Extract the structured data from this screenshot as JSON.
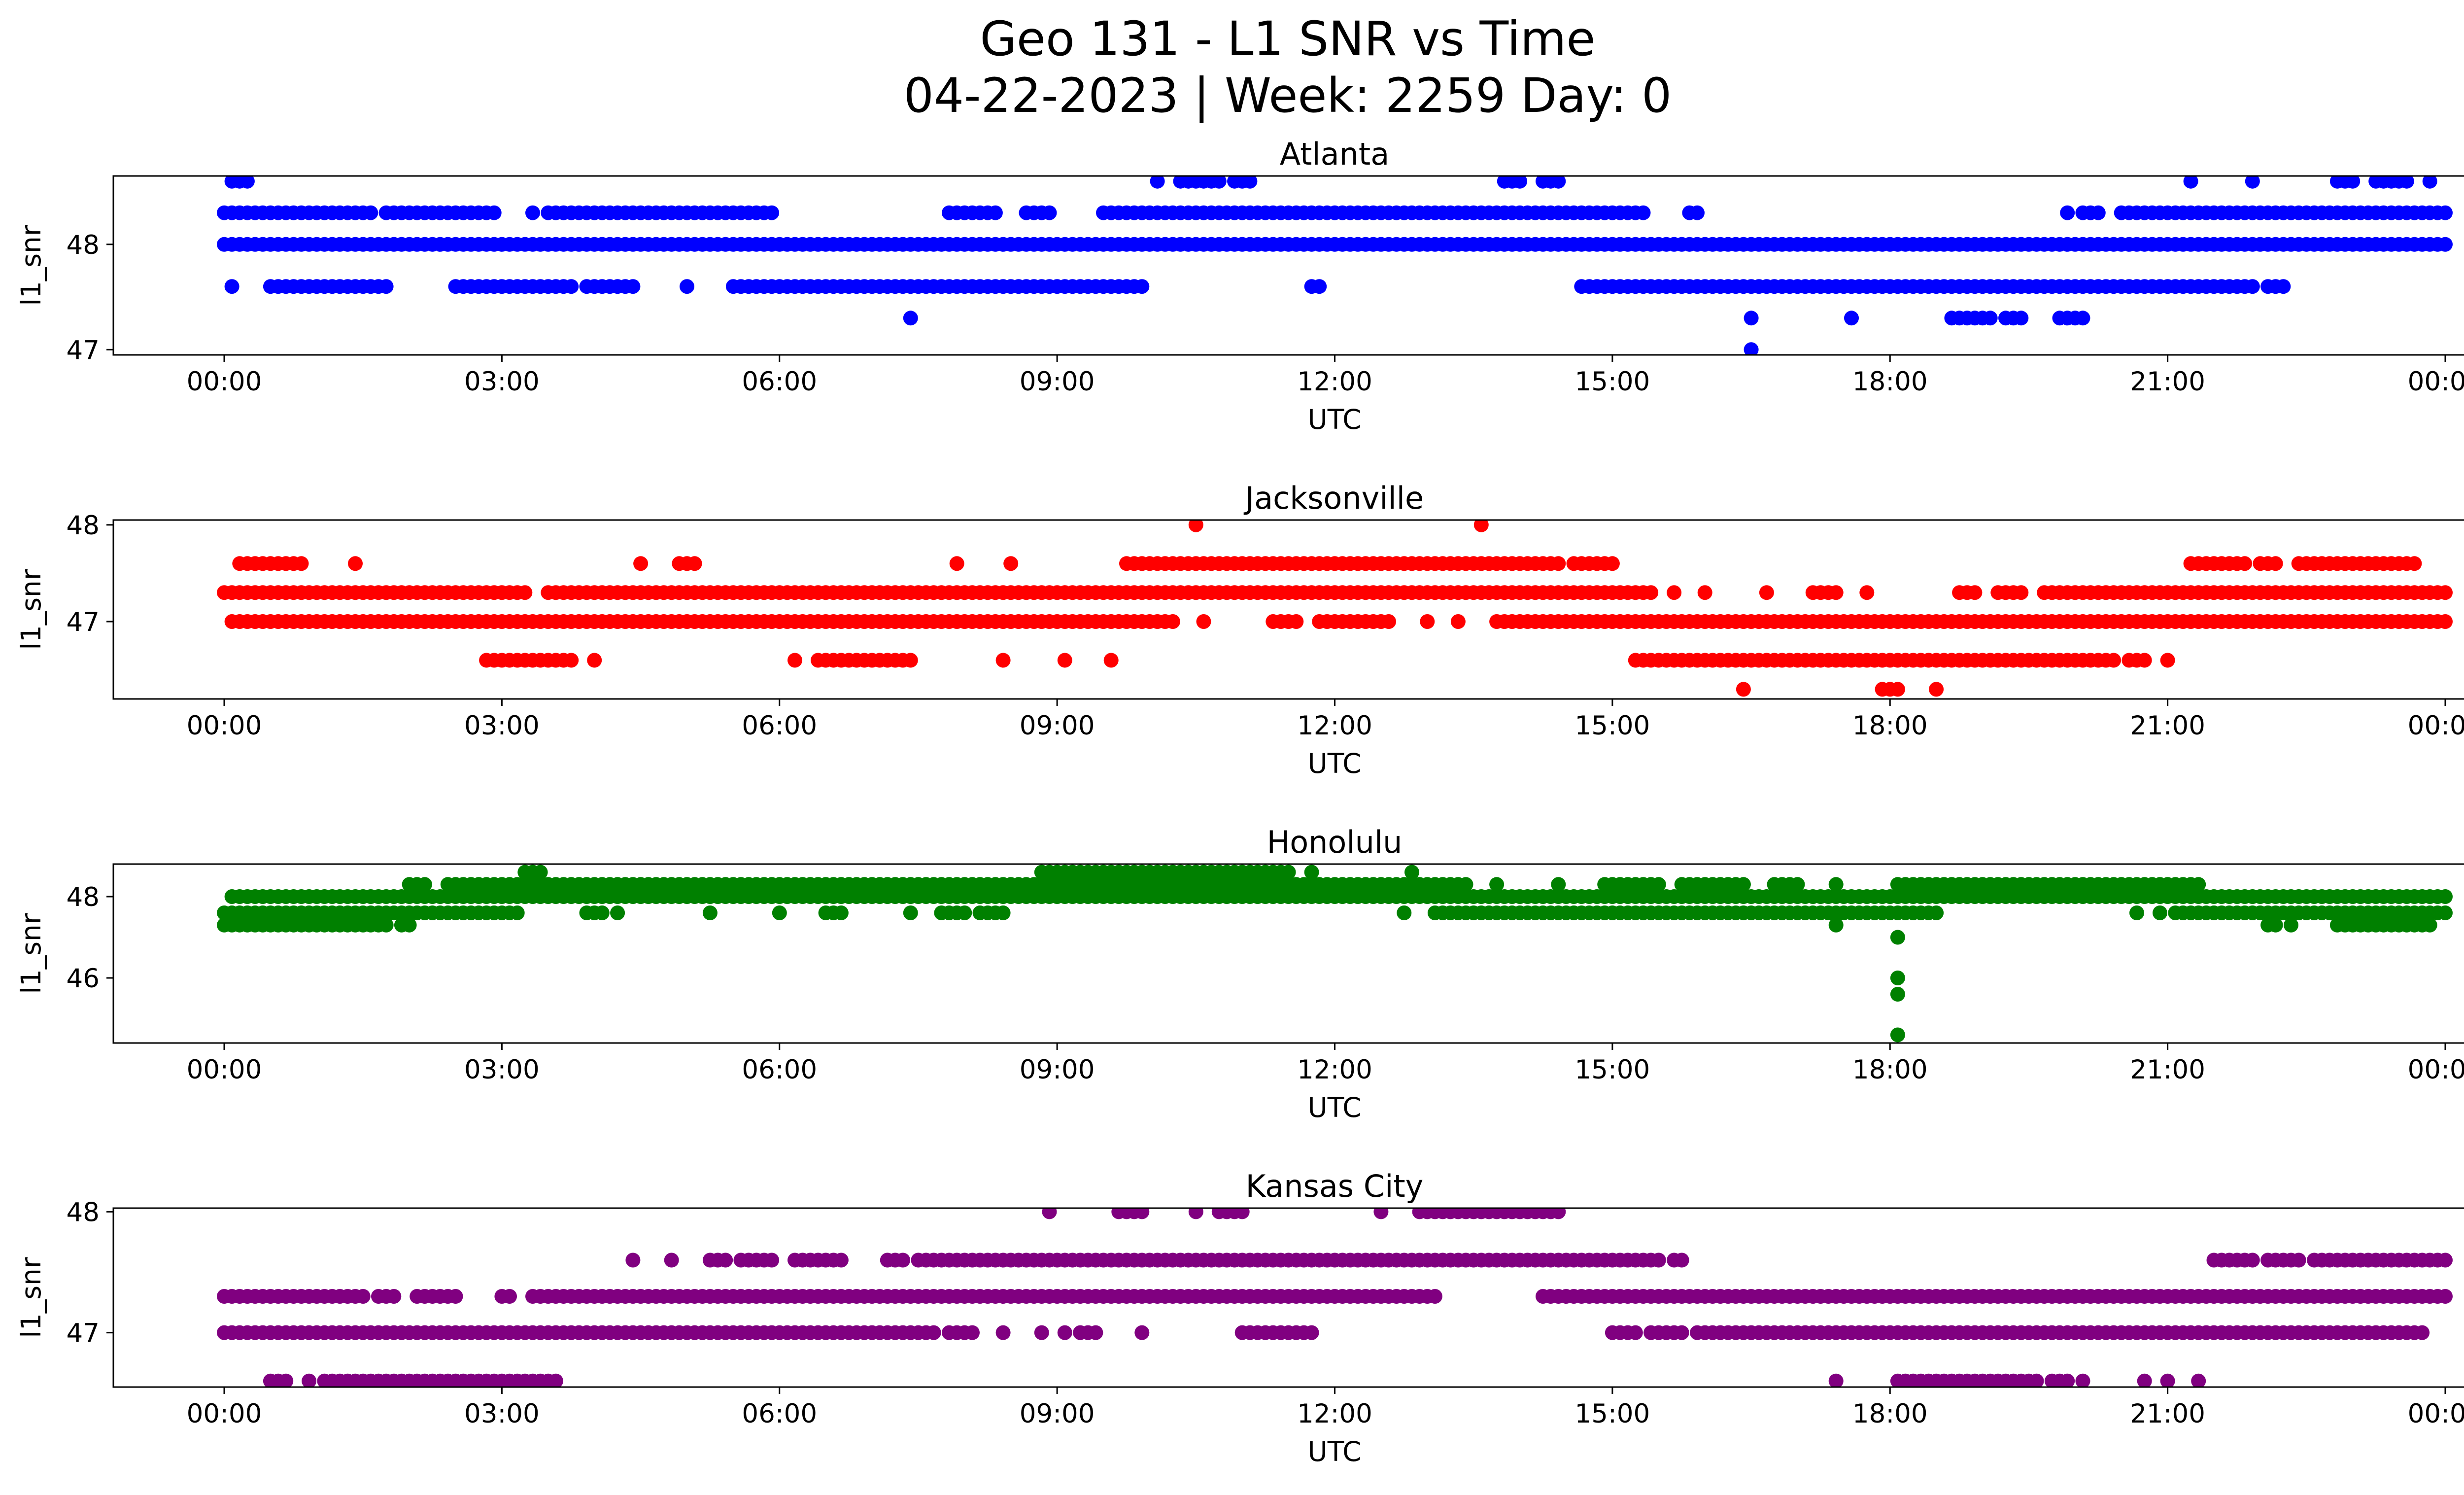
{
  "figure": {
    "title_line1": "Geo 131 - L1 SNR vs Time",
    "title_line2": "04-22-2023 | Week: 2259 Day: 0"
  },
  "chart_data": [
    {
      "type": "scatter",
      "title": "Atlanta",
      "xlabel": "UTC",
      "ylabel": "l1_snr",
      "color": "#0000ff",
      "xlim": [
        "00:00",
        "24:00"
      ],
      "ylim": [
        46.95,
        48.65
      ],
      "xticks": [
        "00:00",
        "03:00",
        "06:00",
        "09:00",
        "12:00",
        "15:00",
        "18:00",
        "21:00",
        "00:00"
      ],
      "yticks": [
        47,
        48
      ],
      "y_levels": [
        47.0,
        47.3,
        47.6,
        48.0,
        48.3,
        48.6
      ],
      "bands": [
        {
          "y": 48.0,
          "ranges": [
            [
              "00:00",
              "24:00"
            ]
          ]
        },
        {
          "y": 48.3,
          "ranges": [
            [
              "00:00",
              "01:35"
            ],
            [
              "01:45",
              "02:55"
            ],
            [
              "03:20",
              "03:20"
            ],
            [
              "03:30",
              "05:55"
            ],
            [
              "07:50",
              "08:20"
            ],
            [
              "08:40",
              "08:55"
            ],
            [
              "09:30",
              "15:20"
            ],
            [
              "15:50",
              "15:55"
            ],
            [
              "19:55",
              "19:55"
            ],
            [
              "20:05",
              "20:15"
            ],
            [
              "20:30",
              "24:00"
            ]
          ]
        },
        {
          "y": 47.6,
          "ranges": [
            [
              "00:05",
              "00:05"
            ],
            [
              "00:30",
              "01:45"
            ],
            [
              "02:30",
              "03:45"
            ],
            [
              "03:55",
              "04:25"
            ],
            [
              "05:00",
              "05:00"
            ],
            [
              "05:30",
              "09:55"
            ],
            [
              "11:45",
              "11:50"
            ],
            [
              "14:40",
              "21:55"
            ],
            [
              "22:05",
              "22:15"
            ]
          ]
        },
        {
          "y": 48.6,
          "ranges": [
            [
              "00:05",
              "00:15"
            ],
            [
              "10:05",
              "10:05"
            ],
            [
              "10:20",
              "10:30"
            ],
            [
              "10:35",
              "10:45"
            ],
            [
              "10:55",
              "11:05"
            ],
            [
              "13:50",
              "14:00"
            ],
            [
              "14:15",
              "14:25"
            ],
            [
              "21:15",
              "21:15"
            ],
            [
              "21:55",
              "21:55"
            ],
            [
              "22:50",
              "23:00"
            ],
            [
              "23:15",
              "23:35"
            ],
            [
              "23:50",
              "23:50"
            ]
          ]
        },
        {
          "y": 47.3,
          "ranges": [
            [
              "07:25",
              "07:25"
            ],
            [
              "16:30",
              "16:30"
            ],
            [
              "17:35",
              "17:35"
            ],
            [
              "18:40",
              "19:05"
            ],
            [
              "19:15",
              "19:25"
            ],
            [
              "19:50",
              "20:05"
            ]
          ]
        },
        {
          "y": 47.0,
          "ranges": [
            [
              "16:30",
              "16:30"
            ]
          ]
        }
      ]
    },
    {
      "type": "scatter",
      "title": "Jacksonville",
      "xlabel": "UTC",
      "ylabel": "l1_snr",
      "color": "#ff0000",
      "xlim": [
        "00:00",
        "24:00"
      ],
      "ylim": [
        46.2,
        48.05
      ],
      "xticks": [
        "00:00",
        "03:00",
        "06:00",
        "09:00",
        "12:00",
        "15:00",
        "18:00",
        "21:00",
        "00:00"
      ],
      "yticks": [
        47,
        48
      ],
      "y_levels": [
        46.3,
        46.6,
        47.0,
        47.3,
        47.6,
        48.0
      ],
      "bands": [
        {
          "y": 47.3,
          "ranges": [
            [
              "00:00",
              "03:15"
            ],
            [
              "03:30",
              "15:25"
            ],
            [
              "15:40",
              "15:40"
            ],
            [
              "16:00",
              "16:00"
            ],
            [
              "16:40",
              "16:40"
            ],
            [
              "17:10",
              "17:25"
            ],
            [
              "17:45",
              "17:45"
            ],
            [
              "18:45",
              "18:55"
            ],
            [
              "19:10",
              "19:25"
            ],
            [
              "19:40",
              "24:00"
            ]
          ]
        },
        {
          "y": 47.0,
          "ranges": [
            [
              "00:05",
              "10:15"
            ],
            [
              "10:35",
              "10:35"
            ],
            [
              "11:20",
              "11:35"
            ],
            [
              "11:50",
              "12:35"
            ],
            [
              "13:00",
              "13:00"
            ],
            [
              "13:20",
              "13:20"
            ],
            [
              "13:45",
              "24:00"
            ]
          ]
        },
        {
          "y": 46.6,
          "ranges": [
            [
              "02:50",
              "03:45"
            ],
            [
              "04:00",
              "04:00"
            ],
            [
              "06:10",
              "06:10"
            ],
            [
              "06:25",
              "07:25"
            ],
            [
              "08:25",
              "08:25"
            ],
            [
              "09:05",
              "09:05"
            ],
            [
              "09:35",
              "09:35"
            ],
            [
              "15:15",
              "20:25"
            ],
            [
              "20:35",
              "20:45"
            ],
            [
              "21:00",
              "21:00"
            ]
          ]
        },
        {
          "y": 47.6,
          "ranges": [
            [
              "00:10",
              "00:50"
            ],
            [
              "01:25",
              "01:25"
            ],
            [
              "04:30",
              "04:30"
            ],
            [
              "04:55",
              "05:05"
            ],
            [
              "07:55",
              "07:55"
            ],
            [
              "08:30",
              "08:30"
            ],
            [
              "09:45",
              "14:25"
            ],
            [
              "14:35",
              "15:00"
            ],
            [
              "21:15",
              "21:50"
            ],
            [
              "22:00",
              "22:10"
            ],
            [
              "22:25",
              "23:40"
            ]
          ]
        },
        {
          "y": 48.0,
          "ranges": [
            [
              "10:30",
              "10:30"
            ],
            [
              "13:35",
              "13:35"
            ]
          ]
        },
        {
          "y": 46.3,
          "ranges": [
            [
              "16:25",
              "16:25"
            ],
            [
              "17:55",
              "18:05"
            ],
            [
              "18:30",
              "18:30"
            ]
          ]
        }
      ]
    },
    {
      "type": "scatter",
      "title": "Honolulu",
      "xlabel": "UTC",
      "ylabel": "l1_snr",
      "color": "#008000",
      "xlim": [
        "00:00",
        "24:00"
      ],
      "ylim": [
        44.4,
        48.8
      ],
      "xticks": [
        "00:00",
        "03:00",
        "06:00",
        "09:00",
        "12:00",
        "15:00",
        "18:00",
        "21:00",
        "00:00"
      ],
      "yticks": [
        46,
        48
      ],
      "y_levels": [
        44.6,
        45.6,
        46.0,
        47.0,
        47.3,
        47.6,
        48.0,
        48.3,
        48.6
      ],
      "bands": [
        {
          "y": 48.0,
          "ranges": [
            [
              "00:05",
              "24:00"
            ]
          ]
        },
        {
          "y": 47.6,
          "ranges": [
            [
              "00:00",
              "03:10"
            ],
            [
              "03:55",
              "04:05"
            ],
            [
              "04:15",
              "04:15"
            ],
            [
              "05:15",
              "05:15"
            ],
            [
              "06:00",
              "06:00"
            ],
            [
              "06:30",
              "06:40"
            ],
            [
              "07:25",
              "07:25"
            ],
            [
              "07:45",
              "08:00"
            ],
            [
              "08:10",
              "08:25"
            ],
            [
              "12:45",
              "12:45"
            ],
            [
              "13:05",
              "18:30"
            ],
            [
              "20:40",
              "20:40"
            ],
            [
              "20:55",
              "20:55"
            ],
            [
              "21:05",
              "24:00"
            ]
          ]
        },
        {
          "y": 47.3,
          "ranges": [
            [
              "00:00",
              "01:45"
            ],
            [
              "01:55",
              "02:00"
            ],
            [
              "17:25",
              "17:25"
            ],
            [
              "22:05",
              "22:10"
            ],
            [
              "22:20",
              "22:20"
            ],
            [
              "22:50",
              "23:50"
            ]
          ]
        },
        {
          "y": 48.3,
          "ranges": [
            [
              "02:00",
              "02:10"
            ],
            [
              "02:25",
              "13:25"
            ],
            [
              "13:45",
              "13:45"
            ],
            [
              "14:25",
              "14:25"
            ],
            [
              "14:55",
              "15:30"
            ],
            [
              "15:45",
              "16:25"
            ],
            [
              "16:45",
              "17:00"
            ],
            [
              "17:25",
              "17:25"
            ],
            [
              "18:05",
              "21:20"
            ]
          ]
        },
        {
          "y": 48.6,
          "ranges": [
            [
              "03:15",
              "03:25"
            ],
            [
              "08:50",
              "11:30"
            ],
            [
              "11:45",
              "11:45"
            ],
            [
              "12:50",
              "12:50"
            ]
          ]
        },
        {
          "y": 47.0,
          "ranges": [
            [
              "18:05",
              "18:05"
            ]
          ]
        },
        {
          "y": 46.0,
          "ranges": [
            [
              "18:05",
              "18:05"
            ]
          ]
        },
        {
          "y": 45.6,
          "ranges": [
            [
              "18:05",
              "18:05"
            ]
          ]
        },
        {
          "y": 44.6,
          "ranges": [
            [
              "18:05",
              "18:05"
            ]
          ]
        }
      ]
    },
    {
      "type": "scatter",
      "title": "Kansas City",
      "xlabel": "UTC",
      "ylabel": "l1_snr",
      "color": "#800080",
      "xlim": [
        "00:00",
        "24:00"
      ],
      "ylim": [
        46.55,
        48.03
      ],
      "xticks": [
        "00:00",
        "03:00",
        "06:00",
        "09:00",
        "12:00",
        "15:00",
        "18:00",
        "21:00",
        "00:00"
      ],
      "yticks": [
        47,
        48
      ],
      "y_levels": [
        46.6,
        47.0,
        47.3,
        47.6,
        48.0
      ],
      "bands": [
        {
          "y": 47.3,
          "ranges": [
            [
              "00:00",
              "01:30"
            ],
            [
              "01:40",
              "01:50"
            ],
            [
              "02:05",
              "02:15"
            ],
            [
              "02:20",
              "02:30"
            ],
            [
              "03:00",
              "03:05"
            ],
            [
              "03:20",
              "13:05"
            ],
            [
              "14:15",
              "24:00"
            ]
          ]
        },
        {
          "y": 47.0,
          "ranges": [
            [
              "00:00",
              "07:40"
            ],
            [
              "07:50",
              "08:05"
            ],
            [
              "08:25",
              "08:25"
            ],
            [
              "08:50",
              "08:50"
            ],
            [
              "09:05",
              "09:05"
            ],
            [
              "09:15",
              "09:25"
            ],
            [
              "09:55",
              "09:55"
            ],
            [
              "11:00",
              "11:45"
            ],
            [
              "15:00",
              "15:15"
            ],
            [
              "15:25",
              "15:45"
            ],
            [
              "15:55",
              "23:45"
            ]
          ]
        },
        {
          "y": 46.6,
          "ranges": [
            [
              "00:30",
              "00:40"
            ],
            [
              "00:55",
              "00:55"
            ],
            [
              "01:05",
              "03:35"
            ],
            [
              "17:25",
              "17:25"
            ],
            [
              "18:05",
              "19:35"
            ],
            [
              "19:45",
              "19:55"
            ],
            [
              "20:05",
              "20:05"
            ],
            [
              "20:45",
              "20:45"
            ],
            [
              "21:00",
              "21:00"
            ],
            [
              "21:20",
              "21:20"
            ]
          ]
        },
        {
          "y": 47.6,
          "ranges": [
            [
              "04:25",
              "04:25"
            ],
            [
              "04:50",
              "04:50"
            ],
            [
              "05:15",
              "05:25"
            ],
            [
              "05:35",
              "05:55"
            ],
            [
              "06:10",
              "06:40"
            ],
            [
              "07:10",
              "07:20"
            ],
            [
              "07:30",
              "15:30"
            ],
            [
              "15:40",
              "15:45"
            ],
            [
              "21:30",
              "21:55"
            ],
            [
              "22:05",
              "22:25"
            ],
            [
              "22:35",
              "24:00"
            ]
          ]
        },
        {
          "y": 48.0,
          "ranges": [
            [
              "08:55",
              "08:55"
            ],
            [
              "09:40",
              "09:55"
            ],
            [
              "10:30",
              "10:30"
            ],
            [
              "10:45",
              "11:00"
            ],
            [
              "12:30",
              "12:30"
            ],
            [
              "12:55",
              "14:25"
            ]
          ]
        }
      ]
    }
  ]
}
